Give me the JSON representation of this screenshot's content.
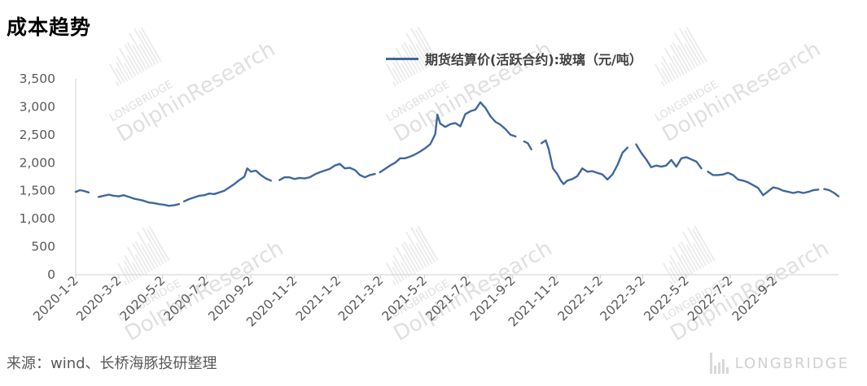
{
  "title": "成本趋势",
  "source": "来源：wind、长桥海豚投研整理",
  "watermark": {
    "text": "DolphinResearch",
    "sub": "LONGBRIDGE",
    "corner": "LONGBRIDGE"
  },
  "legend": {
    "label": "期货结算价(活跃合约):玻璃（元/吨）",
    "color": "#3f679e"
  },
  "chart_data": {
    "type": "line",
    "title": "成本趋势",
    "ylim": [
      0,
      3500
    ],
    "yticks": [
      0,
      500,
      1000,
      1500,
      2000,
      2500,
      3000,
      3500
    ],
    "ytick_labels": [
      "0",
      "500",
      "1,000",
      "1,500",
      "2,000",
      "2,500",
      "3,000",
      "3,500"
    ],
    "xlim": [
      "2020-01-02",
      "2022-11-30"
    ],
    "xticks": [
      "2020-01-02",
      "2020-03-02",
      "2020-05-02",
      "2020-07-02",
      "2020-09-02",
      "2020-11-02",
      "2021-01-02",
      "2021-03-02",
      "2021-05-02",
      "2021-07-02",
      "2021-09-02",
      "2021-11-02",
      "2022-01-02",
      "2022-03-02",
      "2022-05-02",
      "2022-07-02",
      "2022-09-02"
    ],
    "xtick_labels": [
      "2020-1-2",
      "2020-3-2",
      "2020-5-2",
      "2020-7-2",
      "2020-9-2",
      "2020-11-2",
      "2021-1-2",
      "2021-3-2",
      "2021-5-2",
      "2021-7-2",
      "2021-9-2",
      "2021-11-2",
      "2022-1-2",
      "2022-3-2",
      "2022-5-2",
      "2022-7-2",
      "2022-9-2"
    ],
    "grid": false,
    "legend_position": "top-center",
    "series": [
      {
        "name": "期货结算价(活跃合约):玻璃（元/吨）",
        "color": "#3f679e",
        "segments": [
          [
            [
              "2020-01-02",
              1480
            ],
            [
              "2020-01-08",
              1510
            ],
            [
              "2020-01-14",
              1495
            ],
            [
              "2020-01-20",
              1470
            ]
          ],
          [
            [
              "2020-02-03",
              1390
            ],
            [
              "2020-02-10",
              1410
            ],
            [
              "2020-02-17",
              1430
            ],
            [
              "2020-02-24",
              1410
            ],
            [
              "2020-03-02",
              1400
            ],
            [
              "2020-03-09",
              1420
            ],
            [
              "2020-03-16",
              1390
            ],
            [
              "2020-03-23",
              1360
            ],
            [
              "2020-03-30",
              1340
            ],
            [
              "2020-04-06",
              1320
            ],
            [
              "2020-04-13",
              1290
            ],
            [
              "2020-04-20",
              1280
            ],
            [
              "2020-04-27",
              1260
            ],
            [
              "2020-05-04",
              1250
            ],
            [
              "2020-05-11",
              1230
            ],
            [
              "2020-05-18",
              1240
            ],
            [
              "2020-05-25",
              1260
            ]
          ],
          [
            [
              "2020-06-01",
              1310
            ],
            [
              "2020-06-08",
              1350
            ],
            [
              "2020-06-15",
              1380
            ],
            [
              "2020-06-22",
              1410
            ],
            [
              "2020-06-29",
              1420
            ],
            [
              "2020-07-06",
              1450
            ],
            [
              "2020-07-13",
              1440
            ],
            [
              "2020-07-20",
              1470
            ],
            [
              "2020-07-27",
              1500
            ],
            [
              "2020-08-03",
              1560
            ],
            [
              "2020-08-10",
              1620
            ],
            [
              "2020-08-17",
              1690
            ],
            [
              "2020-08-24",
              1750
            ],
            [
              "2020-08-28",
              1900
            ],
            [
              "2020-09-02",
              1840
            ],
            [
              "2020-09-09",
              1860
            ],
            [
              "2020-09-16",
              1780
            ],
            [
              "2020-09-23",
              1720
            ],
            [
              "2020-09-30",
              1680
            ]
          ],
          [
            [
              "2020-10-12",
              1690
            ],
            [
              "2020-10-19",
              1740
            ],
            [
              "2020-10-26",
              1740
            ],
            [
              "2020-11-02",
              1710
            ],
            [
              "2020-11-09",
              1730
            ],
            [
              "2020-11-16",
              1720
            ],
            [
              "2020-11-23",
              1740
            ],
            [
              "2020-11-30",
              1790
            ],
            [
              "2020-12-07",
              1830
            ],
            [
              "2020-12-14",
              1860
            ],
            [
              "2020-12-21",
              1890
            ],
            [
              "2020-12-28",
              1950
            ],
            [
              "2021-01-04",
              1980
            ],
            [
              "2021-01-11",
              1900
            ],
            [
              "2021-01-18",
              1910
            ],
            [
              "2021-01-25",
              1870
            ],
            [
              "2021-02-01",
              1780
            ],
            [
              "2021-02-08",
              1740
            ],
            [
              "2021-02-15",
              1780
            ],
            [
              "2021-02-22",
              1800
            ]
          ],
          [
            [
              "2021-03-01",
              1830
            ],
            [
              "2021-03-08",
              1890
            ],
            [
              "2021-03-15",
              1950
            ],
            [
              "2021-03-22",
              2000
            ],
            [
              "2021-03-29",
              2080
            ],
            [
              "2021-04-05",
              2080
            ],
            [
              "2021-04-12",
              2110
            ],
            [
              "2021-04-19",
              2150
            ],
            [
              "2021-04-26",
              2200
            ],
            [
              "2021-05-03",
              2260
            ],
            [
              "2021-05-10",
              2330
            ],
            [
              "2021-05-17",
              2510
            ],
            [
              "2021-05-20",
              2860
            ],
            [
              "2021-05-24",
              2700
            ],
            [
              "2021-05-31",
              2640
            ],
            [
              "2021-06-07",
              2690
            ],
            [
              "2021-06-14",
              2710
            ],
            [
              "2021-06-21",
              2650
            ],
            [
              "2021-06-28",
              2870
            ],
            [
              "2021-07-05",
              2920
            ],
            [
              "2021-07-12",
              2950
            ],
            [
              "2021-07-19",
              3080
            ],
            [
              "2021-07-26",
              2980
            ],
            [
              "2021-08-02",
              2830
            ],
            [
              "2021-08-09",
              2730
            ],
            [
              "2021-08-16",
              2680
            ],
            [
              "2021-08-23",
              2600
            ],
            [
              "2021-08-30",
              2500
            ],
            [
              "2021-09-06",
              2470
            ]
          ],
          [
            [
              "2021-09-18",
              2380
            ],
            [
              "2021-09-23",
              2350
            ],
            [
              "2021-09-28",
              2240
            ]
          ],
          [
            [
              "2021-10-12",
              2350
            ],
            [
              "2021-10-18",
              2400
            ],
            [
              "2021-10-22",
              2250
            ],
            [
              "2021-10-28",
              1900
            ],
            [
              "2021-11-03",
              1800
            ],
            [
              "2021-11-08",
              1680
            ],
            [
              "2021-11-12",
              1620
            ],
            [
              "2021-11-17",
              1680
            ],
            [
              "2021-11-24",
              1710
            ],
            [
              "2021-12-01",
              1760
            ],
            [
              "2021-12-08",
              1900
            ],
            [
              "2021-12-15",
              1840
            ],
            [
              "2021-12-22",
              1850
            ],
            [
              "2021-12-29",
              1820
            ],
            [
              "2022-01-05",
              1790
            ],
            [
              "2022-01-12",
              1700
            ],
            [
              "2022-01-19",
              1790
            ],
            [
              "2022-01-26",
              1960
            ],
            [
              "2022-02-02",
              2180
            ],
            [
              "2022-02-09",
              2270
            ]
          ],
          [
            [
              "2022-02-21",
              2330
            ],
            [
              "2022-02-28",
              2180
            ],
            [
              "2022-03-07",
              2060
            ],
            [
              "2022-03-14",
              1920
            ],
            [
              "2022-03-21",
              1950
            ],
            [
              "2022-03-28",
              1930
            ],
            [
              "2022-04-04",
              1950
            ],
            [
              "2022-04-11",
              2050
            ],
            [
              "2022-04-18",
              1930
            ],
            [
              "2022-04-25",
              2080
            ],
            [
              "2022-05-02",
              2100
            ],
            [
              "2022-05-09",
              2060
            ],
            [
              "2022-05-16",
              2020
            ],
            [
              "2022-05-23",
              1900
            ]
          ],
          [
            [
              "2022-06-01",
              1840
            ],
            [
              "2022-06-08",
              1780
            ],
            [
              "2022-06-15",
              1780
            ],
            [
              "2022-06-22",
              1790
            ],
            [
              "2022-06-29",
              1820
            ],
            [
              "2022-07-06",
              1780
            ],
            [
              "2022-07-13",
              1700
            ],
            [
              "2022-07-20",
              1680
            ],
            [
              "2022-07-27",
              1650
            ],
            [
              "2022-08-03",
              1600
            ],
            [
              "2022-08-10",
              1550
            ],
            [
              "2022-08-17",
              1420
            ],
            [
              "2022-08-24",
              1490
            ],
            [
              "2022-08-31",
              1560
            ],
            [
              "2022-09-07",
              1540
            ],
            [
              "2022-09-14",
              1500
            ],
            [
              "2022-09-21",
              1480
            ],
            [
              "2022-09-28",
              1460
            ],
            [
              "2022-10-05",
              1480
            ],
            [
              "2022-10-12",
              1460
            ],
            [
              "2022-10-19",
              1480
            ],
            [
              "2022-10-26",
              1510
            ],
            [
              "2022-11-02",
              1520
            ]
          ],
          [
            [
              "2022-11-10",
              1530
            ],
            [
              "2022-11-17",
              1510
            ],
            [
              "2022-11-24",
              1460
            ],
            [
              "2022-11-30",
              1400
            ]
          ]
        ]
      }
    ]
  }
}
